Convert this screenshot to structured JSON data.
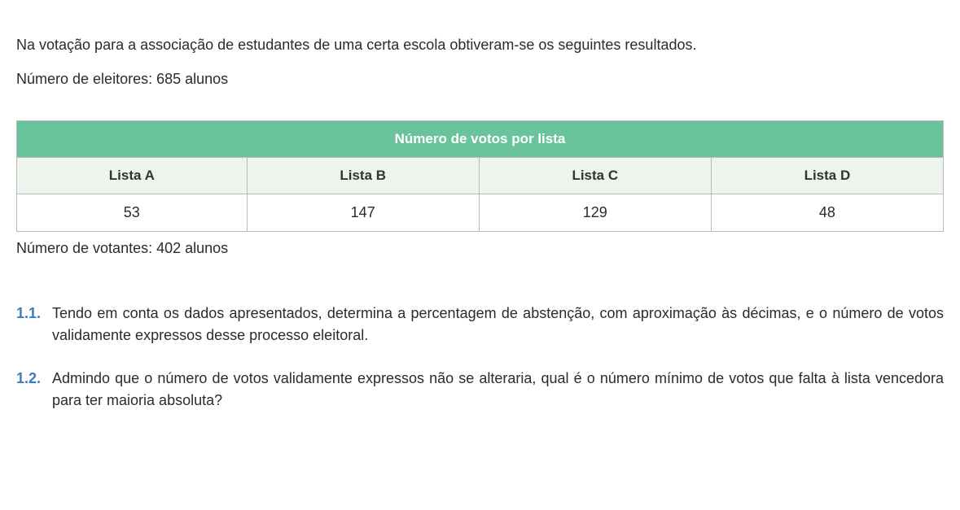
{
  "intro": "Na votação para a associação de estudantes de uma certa escola obtiveram-se os seguintes resultados.",
  "eleitores_line": "Número de eleitores:  685 alunos",
  "table": {
    "title": "Número de votos por lista",
    "columns": [
      "Lista A",
      "Lista B",
      "Lista C",
      "Lista D"
    ],
    "values": [
      53,
      147,
      129,
      48
    ],
    "colors": {
      "header_bg": "#69c49c",
      "header_text": "#ffffff",
      "subhead_bg": "#ecf4ed",
      "border": "#b9b9b9",
      "cell_bg": "#ffffff"
    }
  },
  "votantes_line": "Número de votantes:  402  alunos",
  "questions": [
    {
      "num": "1.1.",
      "text": "Tendo em conta os dados apresentados, determina a percentagem de abstenção, com aproximação às décimas, e o número de votos validamente expressos desse processo eleitoral."
    },
    {
      "num": "1.2.",
      "text": "Admindo que o número de votos validamente expressos não se alteraria, qual é o número mínimo de votos que falta à lista vencedora para ter maioria absoluta?"
    }
  ],
  "num_color": "#3b7bbf"
}
